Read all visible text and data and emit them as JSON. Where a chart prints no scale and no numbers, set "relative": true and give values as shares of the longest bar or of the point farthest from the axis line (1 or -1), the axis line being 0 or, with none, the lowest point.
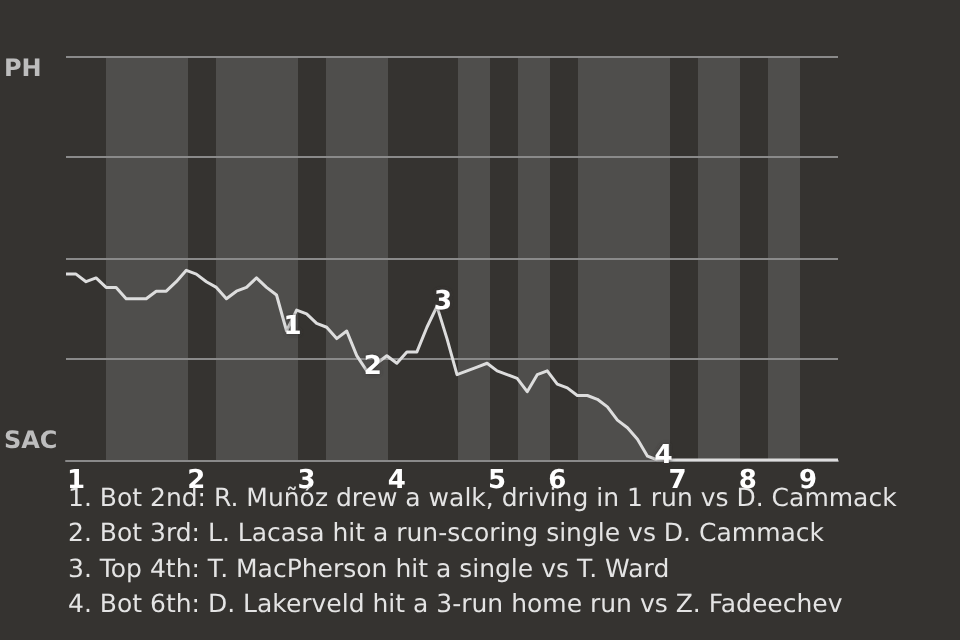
{
  "chart_data": {
    "type": "line",
    "relative": true,
    "categories": [
      null,
      "1",
      null,
      null,
      null,
      null,
      null,
      null,
      null,
      null,
      null,
      null,
      null,
      "2",
      null,
      null,
      null,
      null,
      null,
      null,
      null,
      null,
      null,
      null,
      "3",
      null,
      null,
      null,
      null,
      null,
      null,
      null,
      null,
      "4",
      null,
      null,
      null,
      null,
      null,
      null,
      null,
      null,
      null,
      "5",
      null,
      null,
      null,
      null,
      null,
      "6",
      null,
      null,
      null,
      null,
      null,
      null,
      null,
      null,
      null,
      null,
      null,
      "7",
      null,
      null,
      null,
      null,
      null,
      null,
      "8",
      null,
      null,
      null,
      null,
      null,
      "9",
      null,
      null,
      null
    ],
    "series": [
      {
        "color": "#dddddd",
        "values": [
          0.98,
          0.98,
          0.94,
          0.96,
          0.91,
          0.91,
          0.85,
          0.85,
          0.85,
          0.89,
          0.89,
          0.94,
          1,
          0.98,
          0.94,
          0.91,
          0.85,
          0.89,
          0.91,
          0.96,
          0.91,
          0.87,
          0.68,
          0.79,
          0.77,
          0.72,
          0.7,
          0.64,
          0.68,
          0.55,
          0.47,
          0.51,
          0.55,
          0.51,
          0.57,
          0.57,
          0.7,
          0.81,
          0.64,
          0.45,
          0.47,
          0.49,
          0.51,
          0.47,
          0.45,
          0.43,
          0.36,
          0.45,
          0.47,
          0.4,
          0.38,
          0.34,
          0.34,
          0.32,
          0.28,
          0.21,
          0.17,
          0.11,
          0.02,
          0,
          0,
          0,
          0,
          0,
          0,
          0,
          0,
          0,
          0,
          0,
          0,
          0,
          0,
          0,
          0,
          0,
          0,
          0
        ]
      }
    ],
    "marker": "none",
    "ref_lines": [
      {
        "axis": "y",
        "value": 0.53,
        "color": "#8a8a8a"
      },
      {
        "axis": "y",
        "value": 1.06,
        "color": "#8a8a8a"
      },
      {
        "axis": "y",
        "value": 1.6,
        "color": "#8a8a8a"
      },
      {
        "axis": "y",
        "value": 2.13,
        "color": "#8a8a8a"
      }
    ],
    "annotations": [
      {
        "text": "1",
        "y": 0.68
      },
      {
        "text": "2",
        "y": 0.47
      },
      {
        "text": "3",
        "y": 0.81
      },
      {
        "text": "4",
        "y": 0
      },
      "PH",
      "SAC",
      "1. Bot 2nd: R. Muñóz drew a walk, driving in 1 run vs D. Cammack",
      "2. Bot 3rd: L. Lacasa hit a run-scoring single vs D. Cammack",
      "3. Top 4th: T. MacPherson hit a single vs T. Ward",
      "4. Bot 6th: D. Lakerveld hit a 3-run home run vs Z. Fadeechev"
    ]
  }
}
